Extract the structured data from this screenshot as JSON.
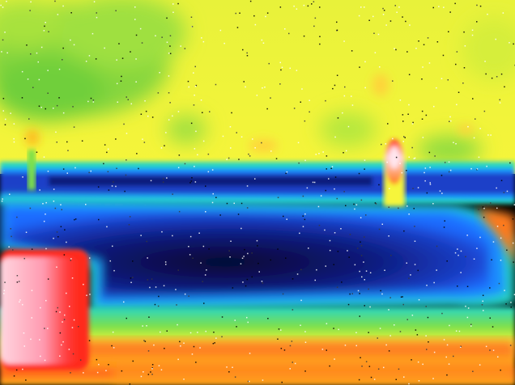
{
  "image": {
    "kind": "thermal-camera-frame",
    "palette": [
      "#0a0a4a",
      "#1a3fc8",
      "#1f8cff",
      "#27d6c4",
      "#7ee04a",
      "#f6f53a",
      "#ffb31f",
      "#ff3b1a",
      "#ffd6e0"
    ]
  }
}
